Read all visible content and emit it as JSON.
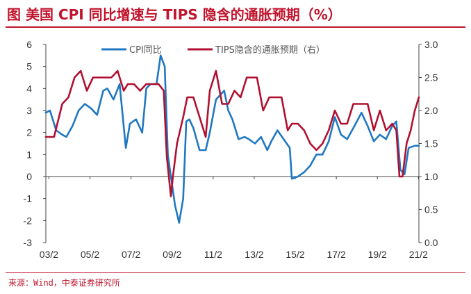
{
  "title": "图  美国 CPI 同比增速与 TIPS 隐含的通胀预期（%）",
  "source": "来源：Wind，中泰证券研究所",
  "colors": {
    "cpi": "#1f78c1",
    "tips": "#b01030",
    "brand": "#c0142c"
  },
  "chart_data": {
    "type": "line",
    "legend_placement": "top",
    "grid": false,
    "x_tick_labels": [
      "03/2",
      "05/2",
      "07/2",
      "09/2",
      "11/2",
      "13/2",
      "15/2",
      "17/2",
      "19/2",
      "21/2"
    ],
    "x_range": [
      2003.0,
      2021.2
    ],
    "y_left": {
      "ticks": [
        "6",
        "5",
        "4",
        "3",
        "2",
        "1",
        "0",
        "-1",
        "-2",
        "-3"
      ],
      "ylim": [
        -3,
        6
      ]
    },
    "y_right": {
      "ticks": [
        "3.0",
        "2.5",
        "2.0",
        "1.5",
        "1.0",
        "0.5",
        "0.0"
      ],
      "ylim": [
        0,
        3
      ]
    },
    "series": [
      {
        "name": "CPI同比",
        "axis": "left",
        "x": [
          2003.0,
          2003.2,
          2003.5,
          2003.8,
          2004.0,
          2004.3,
          2004.6,
          2004.9,
          2005.2,
          2005.5,
          2005.8,
          2006.0,
          2006.3,
          2006.6,
          2006.9,
          2007.1,
          2007.4,
          2007.7,
          2007.9,
          2008.1,
          2008.4,
          2008.6,
          2008.8,
          2008.95,
          2009.1,
          2009.3,
          2009.5,
          2009.7,
          2009.85,
          2010.0,
          2010.2,
          2010.5,
          2010.8,
          2011.0,
          2011.3,
          2011.7,
          2011.9,
          2012.1,
          2012.4,
          2012.7,
          2012.9,
          2013.2,
          2013.5,
          2013.8,
          2014.0,
          2014.3,
          2014.6,
          2014.9,
          2015.0,
          2015.3,
          2015.6,
          2015.9,
          2016.2,
          2016.5,
          2016.8,
          2017.1,
          2017.4,
          2017.7,
          2018.0,
          2018.4,
          2018.7,
          2019.0,
          2019.3,
          2019.6,
          2019.9,
          2020.1,
          2020.3,
          2020.5,
          2020.7,
          2021.0,
          2021.2
        ],
        "y": [
          2.9,
          3.0,
          2.1,
          1.9,
          1.8,
          2.3,
          3.0,
          3.3,
          3.1,
          2.8,
          3.9,
          4.0,
          3.5,
          4.2,
          1.3,
          2.4,
          2.6,
          2.0,
          4.0,
          4.2,
          4.2,
          5.5,
          5.0,
          1.0,
          0.0,
          -1.3,
          -2.1,
          -1.0,
          2.5,
          2.6,
          2.2,
          1.2,
          1.2,
          2.0,
          3.5,
          3.9,
          3.0,
          2.6,
          1.7,
          1.8,
          1.7,
          1.5,
          1.8,
          1.2,
          1.6,
          2.1,
          1.7,
          1.3,
          -0.1,
          0.0,
          0.2,
          0.5,
          1.0,
          1.0,
          1.6,
          2.7,
          1.9,
          1.7,
          2.2,
          2.9,
          2.3,
          1.6,
          1.9,
          1.7,
          2.3,
          2.5,
          0.3,
          0.1,
          1.3,
          1.4,
          1.4
        ]
      },
      {
        "name": "TIPS隐含的通胀预期（右）",
        "axis": "right",
        "x": [
          2003.0,
          2003.4,
          2003.8,
          2004.1,
          2004.4,
          2004.7,
          2005.0,
          2005.3,
          2005.6,
          2005.9,
          2006.2,
          2006.5,
          2006.8,
          2007.0,
          2007.3,
          2007.6,
          2007.9,
          2008.2,
          2008.5,
          2008.75,
          2008.9,
          2009.1,
          2009.2,
          2009.4,
          2009.7,
          2009.9,
          2010.2,
          2010.5,
          2010.8,
          2011.0,
          2011.3,
          2011.6,
          2011.9,
          2012.2,
          2012.5,
          2012.8,
          2013.0,
          2013.3,
          2013.6,
          2013.9,
          2014.2,
          2014.5,
          2014.8,
          2015.0,
          2015.3,
          2015.6,
          2015.9,
          2016.2,
          2016.5,
          2016.8,
          2017.1,
          2017.4,
          2017.7,
          2018.0,
          2018.4,
          2018.7,
          2019.0,
          2019.3,
          2019.6,
          2019.9,
          2020.1,
          2020.25,
          2020.4,
          2020.6,
          2020.8,
          2021.0,
          2021.2
        ],
        "y": [
          1.6,
          1.6,
          2.1,
          2.2,
          2.5,
          2.6,
          2.3,
          2.5,
          2.5,
          2.5,
          2.5,
          2.6,
          2.3,
          2.4,
          2.4,
          2.3,
          2.4,
          2.4,
          2.4,
          2.3,
          1.3,
          0.7,
          1.0,
          1.5,
          1.9,
          2.2,
          2.2,
          1.9,
          1.6,
          2.3,
          2.6,
          2.1,
          2.1,
          2.3,
          2.2,
          2.5,
          2.5,
          2.5,
          2.0,
          2.2,
          2.2,
          2.2,
          1.7,
          1.8,
          1.8,
          1.7,
          1.5,
          1.4,
          1.5,
          1.7,
          2.0,
          1.8,
          1.8,
          2.1,
          2.1,
          2.1,
          1.7,
          2.0,
          1.7,
          1.8,
          1.7,
          1.0,
          1.0,
          1.5,
          1.7,
          2.0,
          2.2
        ]
      }
    ]
  }
}
